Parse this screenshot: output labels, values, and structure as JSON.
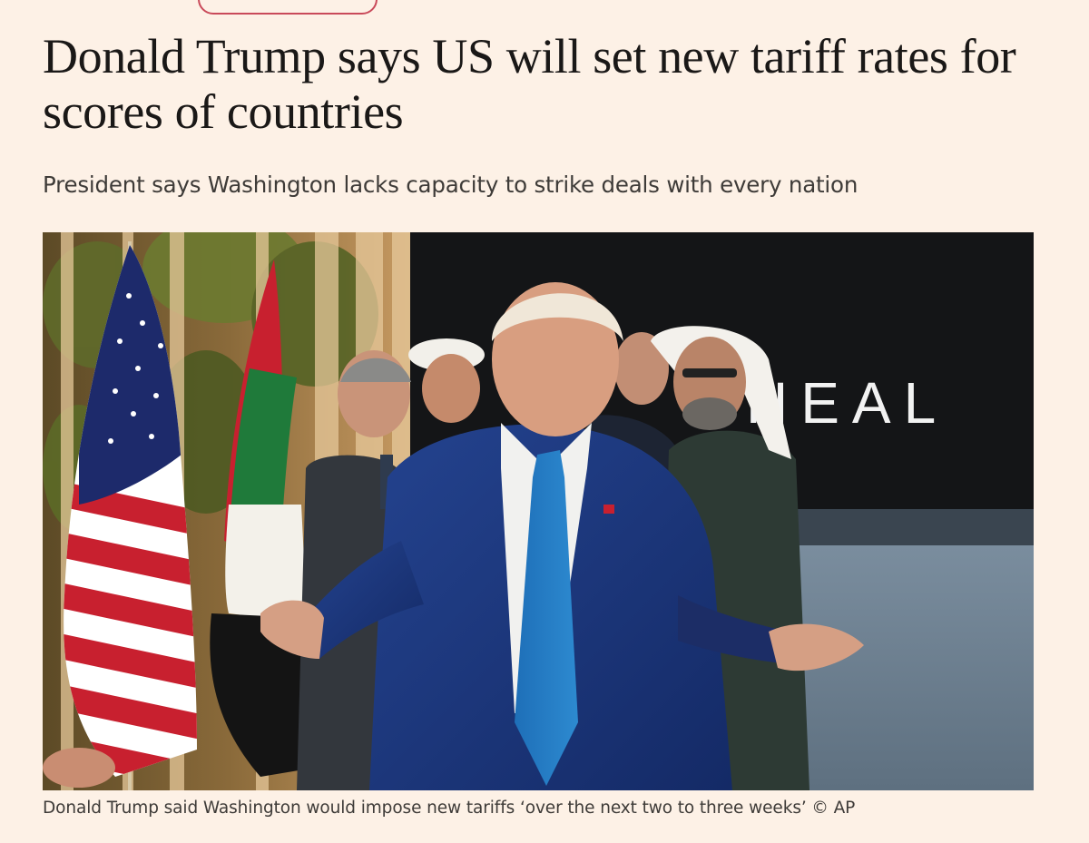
{
  "article": {
    "headline": "Donald Trump says US will set new tariff rates for scores of countries",
    "standfirst": "President says Washington lacks capacity to strike deals with every nation",
    "photo_sign_text": "HEAL",
    "caption": "Donald Trump said Washington would impose new tariffs ‘over the next two to three weeks’ © AP"
  },
  "colors": {
    "page_background": "#fdf1e6",
    "headline_text": "#1a1817",
    "body_text": "#3e3b38",
    "topic_accent": "#c94a5a"
  }
}
